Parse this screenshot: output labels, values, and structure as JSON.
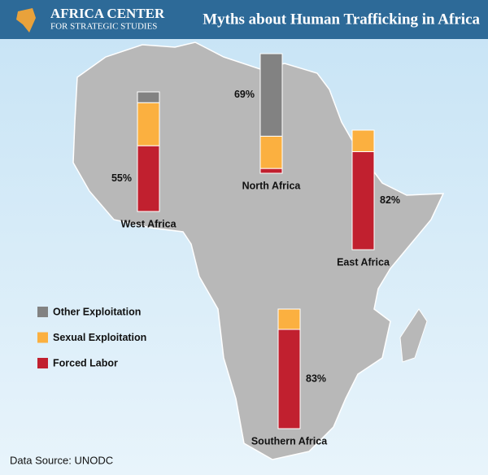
{
  "header": {
    "org": "AFRICA CENTER",
    "org_sub": "FOR STRATEGIC STUDIES"
  },
  "chart_data": {
    "type": "stacked_bar_map",
    "title": "Myths about Human Trafficking in Africa",
    "categories": [
      "West Africa",
      "North Africa",
      "East Africa",
      "Southern Africa"
    ],
    "series": [
      {
        "name": "Other Exploitation",
        "color": "#828282",
        "values": [
          9,
          69,
          0,
          0
        ],
        "value_labels": [
          null,
          "69%",
          null,
          null
        ]
      },
      {
        "name": "Sexual Exploitation",
        "color": "#fbb040",
        "values": [
          36,
          27,
          18,
          17
        ],
        "value_labels": [
          null,
          null,
          null,
          null
        ]
      },
      {
        "name": "Forced Labor",
        "color": "#c1202f",
        "values": [
          55,
          4,
          82,
          83
        ],
        "value_labels": [
          "55%",
          null,
          "82%",
          "83%"
        ]
      }
    ],
    "source": "Data Source: UNODC"
  }
}
